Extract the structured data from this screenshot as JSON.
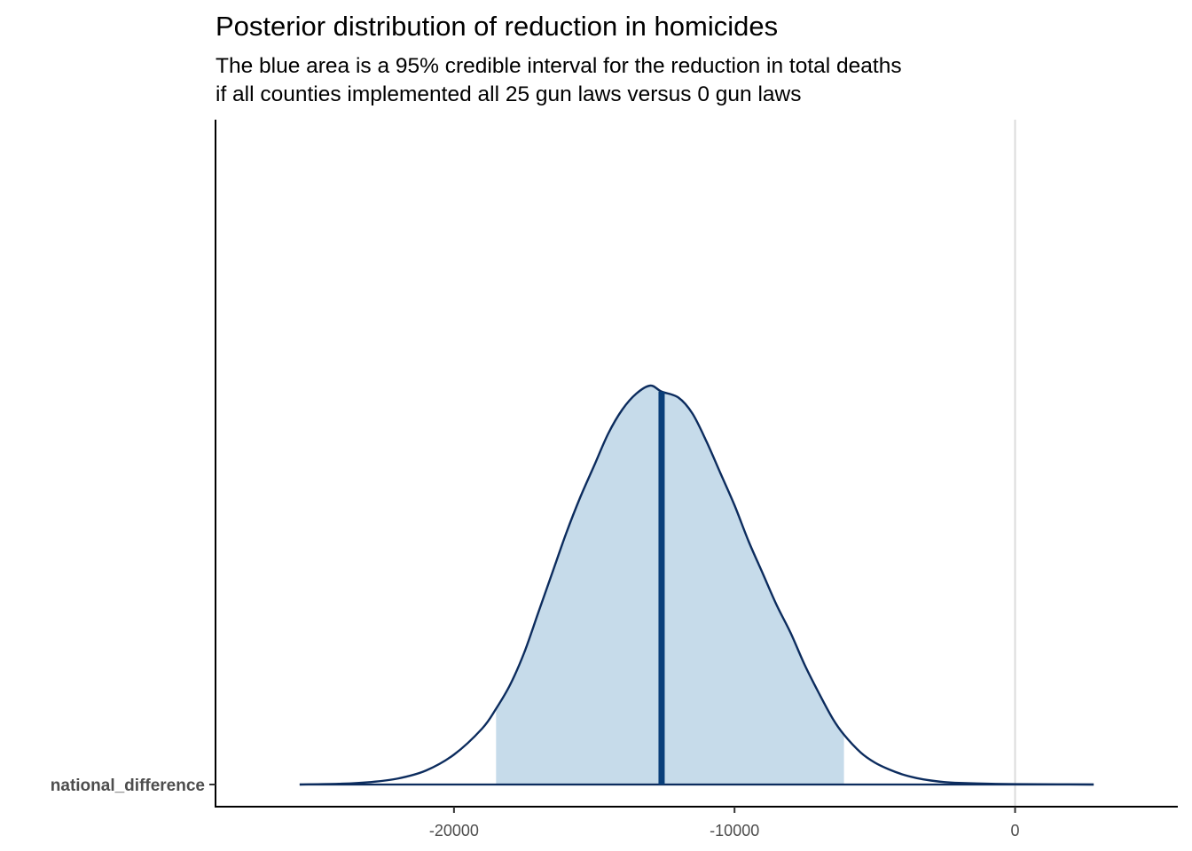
{
  "chart_data": {
    "type": "area",
    "title": "Posterior distribution of reduction in homicides",
    "subtitle_lines": [
      "The blue area is a 95% credible interval for the reduction in total deaths",
      "if all counties implemented all 25 gun laws versus 0 gun laws"
    ],
    "category": "national_difference",
    "xlabel": "",
    "ylabel": "",
    "xlim": [
      -28500,
      5800
    ],
    "x_ticks": [
      -20000,
      -10000,
      0
    ],
    "x_tick_labels": [
      "-20000",
      "-10000",
      "0"
    ],
    "reference_line_x": 0,
    "median": -12600,
    "credible_interval": [
      -18500,
      -6100
    ],
    "density_points": [
      [
        -25500,
        0.0
      ],
      [
        -24000,
        0.002
      ],
      [
        -23000,
        0.006
      ],
      [
        -22000,
        0.015
      ],
      [
        -21000,
        0.035
      ],
      [
        -20000,
        0.075
      ],
      [
        -19000,
        0.14
      ],
      [
        -18500,
        0.19
      ],
      [
        -18000,
        0.25
      ],
      [
        -17500,
        0.33
      ],
      [
        -17000,
        0.43
      ],
      [
        -16500,
        0.53
      ],
      [
        -16000,
        0.63
      ],
      [
        -15500,
        0.72
      ],
      [
        -15000,
        0.8
      ],
      [
        -14500,
        0.88
      ],
      [
        -14000,
        0.94
      ],
      [
        -13500,
        0.98
      ],
      [
        -13000,
        1.0
      ],
      [
        -12600,
        0.985
      ],
      [
        -12000,
        0.97
      ],
      [
        -11500,
        0.93
      ],
      [
        -11000,
        0.86
      ],
      [
        -10500,
        0.78
      ],
      [
        -10000,
        0.7
      ],
      [
        -9500,
        0.61
      ],
      [
        -9000,
        0.53
      ],
      [
        -8500,
        0.45
      ],
      [
        -8000,
        0.38
      ],
      [
        -7500,
        0.3
      ],
      [
        -7000,
        0.23
      ],
      [
        -6500,
        0.165
      ],
      [
        -6100,
        0.125
      ],
      [
        -5500,
        0.08
      ],
      [
        -5000,
        0.055
      ],
      [
        -4500,
        0.038
      ],
      [
        -4000,
        0.025
      ],
      [
        -3500,
        0.016
      ],
      [
        -3000,
        0.01
      ],
      [
        -2500,
        0.006
      ],
      [
        -2000,
        0.004
      ],
      [
        -1000,
        0.002
      ],
      [
        0,
        0.001
      ],
      [
        1500,
        0.0005
      ],
      [
        2800,
        0.0
      ]
    ],
    "colors": {
      "fill": "#c6dbea",
      "outline": "#0c2c5e",
      "median_line": "#0a3f7a",
      "reference_line": "#dcdcdc",
      "axis": "#000000"
    }
  }
}
